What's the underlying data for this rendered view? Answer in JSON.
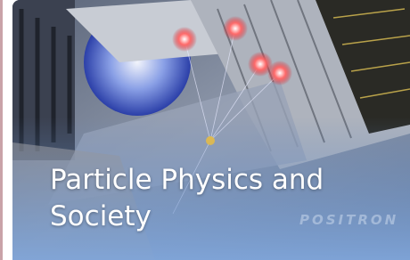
{
  "card": {
    "title_lines": [
      "Particle Physics and",
      "Society"
    ],
    "watermark": "POSITRON"
  }
}
